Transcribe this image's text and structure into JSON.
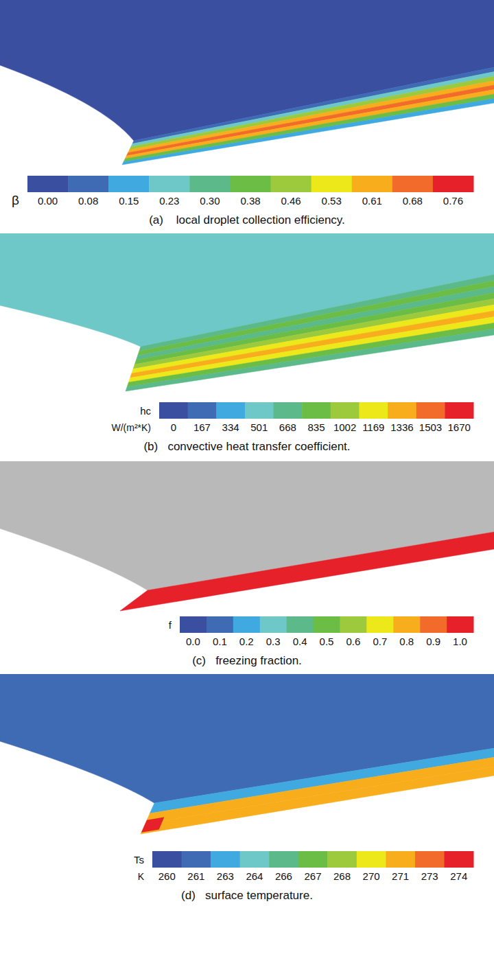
{
  "chart_data": [
    {
      "type": "contour",
      "title": "(a)    local droplet collection efficiency.",
      "colorbar": {
        "label": "β",
        "levels": [
          {
            "value": 0,
            "label": "0.00"
          },
          0.08,
          0.15,
          0.23,
          {
            "value": 0.3,
            "label": "0.30"
          },
          0.38,
          0.46,
          0.53,
          0.61,
          0.68,
          0.76
        ],
        "colors": [
          "#3a4fa0",
          "#3f6ab4",
          "#3fa9e0",
          "#6ec8c7",
          "#5bb98a",
          "#6cbd45",
          "#9cca3c",
          "#ece81a",
          "#f8ad1d",
          "#f26b2a",
          "#e62129"
        ]
      },
      "values": [
        0,
        0.08,
        0.23,
        0.46,
        0.61,
        0.68,
        0.61,
        0.38,
        0.15
      ]
    },
    {
      "type": "contour",
      "title": "(b)   convective heat transfer coefficient.",
      "colorbar": {
        "label": "hc",
        "unit": "W/(m²*K)",
        "levels": [
          0,
          167,
          334,
          501,
          668,
          835,
          1002,
          1169,
          1336,
          1503,
          1670
        ],
        "colors": [
          "#3a4fa0",
          "#3f6ab4",
          "#3fa9e0",
          "#6ec8c7",
          "#5bb98a",
          "#6cbd45",
          "#9cca3c",
          "#ece81a",
          "#f8ad1d",
          "#f26b2a",
          "#e62129"
        ]
      },
      "values": [
        501,
        668,
        835,
        668,
        835,
        1002,
        1169,
        1336,
        1169,
        835,
        668
      ]
    },
    {
      "type": "contour",
      "title": "(c)   freezing fraction.",
      "colorbar": {
        "label": "f",
        "levels": [
          {
            "value": 0,
            "label": "0.0"
          },
          0.1,
          0.2,
          0.3,
          0.4,
          0.5,
          0.6,
          0.7,
          0.8,
          0.9,
          {
            "value": 1,
            "label": "1.0"
          }
        ],
        "colors": [
          "#3a4fa0",
          "#3f6ab4",
          "#3fa9e0",
          "#6ec8c7",
          "#5bb98a",
          "#6cbd45",
          "#9cca3c",
          "#ece81a",
          "#f8ad1d",
          "#f26b2a",
          "#e62129"
        ]
      },
      "values": [
        null,
        1
      ]
    },
    {
      "type": "contour",
      "title": "(d)   surface temperature.",
      "colorbar": {
        "label": "Ts",
        "unit": "K",
        "levels": [
          260,
          261,
          263,
          264,
          266,
          267,
          268,
          270,
          271,
          273,
          274
        ],
        "colors": [
          "#3a4fa0",
          "#3f6ab4",
          "#3fa9e0",
          "#6ec8c7",
          "#5bb98a",
          "#6cbd45",
          "#9cca3c",
          "#ece81a",
          "#f8ad1d",
          "#f26b2a",
          "#e62129"
        ]
      },
      "values": [
        261,
        263,
        271,
        271
      ],
      "hot_spot": 274
    }
  ]
}
